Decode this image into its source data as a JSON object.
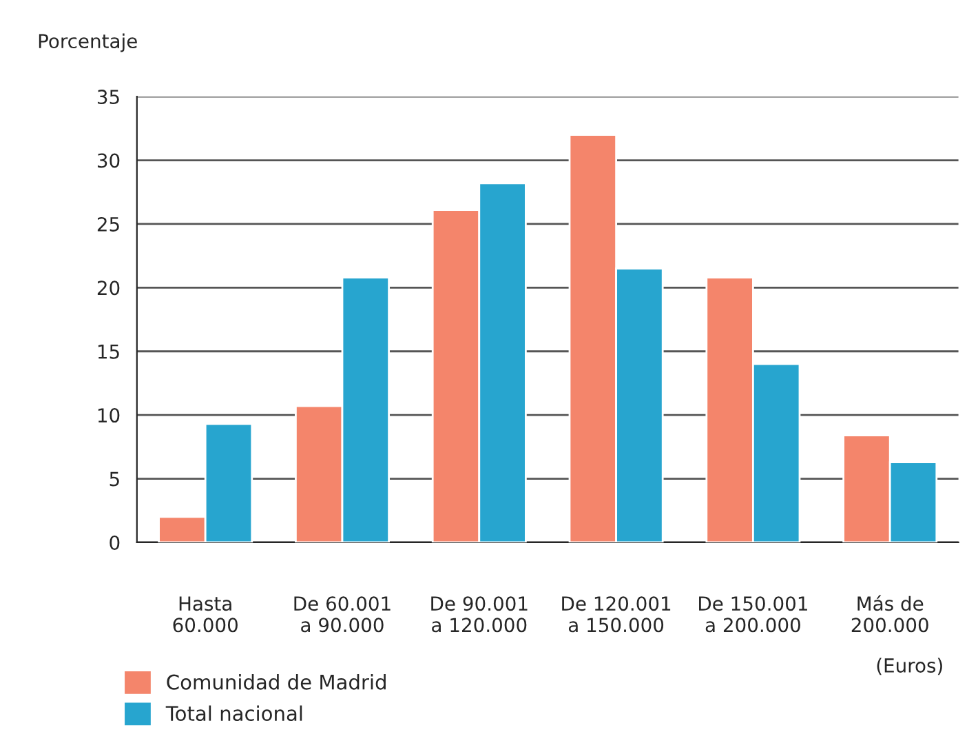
{
  "chart_data": {
    "type": "bar",
    "ylabel": "Porcentaje",
    "categories": [
      "Hasta\n60.000",
      "De 60.001\na 90.000",
      "De 90.001\na 120.000",
      "De 120.001\na 150.000",
      "De 150.001\na 200.000",
      "Más de\n200.000"
    ],
    "series": [
      {
        "name": "Comunidad de Madrid",
        "color": "#f4856b",
        "values": [
          2.0,
          10.7,
          26.1,
          32.0,
          20.8,
          8.4
        ]
      },
      {
        "name": "Total nacional",
        "color": "#27a5cf",
        "values": [
          9.3,
          20.8,
          28.2,
          21.5,
          14.0,
          6.3
        ]
      }
    ],
    "ylim": [
      0,
      35
    ],
    "yticks": [
      0,
      5,
      10,
      15,
      20,
      25,
      30,
      35
    ],
    "grid": "y",
    "legend": "bottom left",
    "annotations": [
      "(Euros)"
    ]
  }
}
